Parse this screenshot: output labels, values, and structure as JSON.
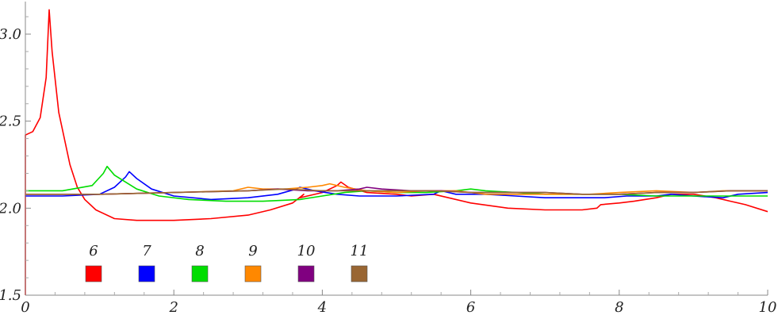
{
  "chart_data": {
    "type": "line",
    "title": "",
    "xlabel": "",
    "ylabel": "",
    "xlim": [
      0,
      10
    ],
    "ylim": [
      1.5,
      3.2
    ],
    "x_ticks": [
      0,
      2,
      4,
      6,
      8,
      10
    ],
    "x_tick_labels": [
      "0",
      "2",
      "4",
      "6",
      "8",
      "10"
    ],
    "y_ticks": [
      1.5,
      2.0,
      2.5,
      3.0
    ],
    "y_tick_labels": [
      "1.5",
      "2.0",
      "2.5",
      "3.0"
    ],
    "grid": false,
    "legend_placement": "bottom-left",
    "series": [
      {
        "name": "6",
        "color": "#ff0000",
        "points": [
          [
            0,
            1.5
          ],
          [
            0,
            2.42
          ],
          [
            0.1,
            2.44
          ],
          [
            0.2,
            2.52
          ],
          [
            0.28,
            2.75
          ],
          [
            0.32,
            3.14
          ],
          [
            0.36,
            2.9
          ],
          [
            0.45,
            2.55
          ],
          [
            0.6,
            2.25
          ],
          [
            0.7,
            2.12
          ],
          [
            0.8,
            2.05
          ],
          [
            0.95,
            1.99
          ],
          [
            1.2,
            1.94
          ],
          [
            1.5,
            1.93
          ],
          [
            2.0,
            1.93
          ],
          [
            2.5,
            1.94
          ],
          [
            3.0,
            1.96
          ],
          [
            3.3,
            1.99
          ],
          [
            3.6,
            2.03
          ],
          [
            3.75,
            2.08
          ],
          [
            3.7,
            2.06
          ],
          [
            4.0,
            2.09
          ],
          [
            4.2,
            2.13
          ],
          [
            4.25,
            2.15
          ],
          [
            4.35,
            2.12
          ],
          [
            4.6,
            2.09
          ],
          [
            5.0,
            2.08
          ],
          [
            5.2,
            2.07
          ],
          [
            5.5,
            2.08
          ],
          [
            5.7,
            2.06
          ],
          [
            6.0,
            2.03
          ],
          [
            6.5,
            2.0
          ],
          [
            7.0,
            1.99
          ],
          [
            7.5,
            1.99
          ],
          [
            7.7,
            2.0
          ],
          [
            7.75,
            2.02
          ],
          [
            8.0,
            2.03
          ],
          [
            8.2,
            2.04
          ],
          [
            8.5,
            2.06
          ],
          [
            8.7,
            2.08
          ],
          [
            9.0,
            2.08
          ],
          [
            9.3,
            2.06
          ],
          [
            9.5,
            2.04
          ],
          [
            9.7,
            2.02
          ],
          [
            10,
            1.98
          ]
        ]
      },
      {
        "name": "7",
        "color": "#0000ff",
        "points": [
          [
            0,
            2.07
          ],
          [
            0.5,
            2.07
          ],
          [
            1.0,
            2.08
          ],
          [
            1.2,
            2.12
          ],
          [
            1.35,
            2.18
          ],
          [
            1.4,
            2.21
          ],
          [
            1.5,
            2.17
          ],
          [
            1.7,
            2.11
          ],
          [
            2.0,
            2.07
          ],
          [
            2.5,
            2.05
          ],
          [
            3.0,
            2.06
          ],
          [
            3.4,
            2.08
          ],
          [
            3.65,
            2.11
          ],
          [
            3.7,
            2.12
          ],
          [
            3.9,
            2.1
          ],
          [
            4.2,
            2.08
          ],
          [
            4.5,
            2.07
          ],
          [
            5.0,
            2.07
          ],
          [
            5.5,
            2.08
          ],
          [
            5.6,
            2.1
          ],
          [
            5.8,
            2.08
          ],
          [
            6.2,
            2.08
          ],
          [
            6.6,
            2.07
          ],
          [
            7.0,
            2.06
          ],
          [
            7.4,
            2.06
          ],
          [
            7.8,
            2.06
          ],
          [
            8.1,
            2.07
          ],
          [
            8.5,
            2.07
          ],
          [
            8.7,
            2.08
          ],
          [
            9.0,
            2.07
          ],
          [
            9.4,
            2.06
          ],
          [
            9.6,
            2.08
          ],
          [
            10,
            2.09
          ]
        ]
      },
      {
        "name": "8",
        "color": "#00dd00",
        "points": [
          [
            0,
            2.1
          ],
          [
            0.5,
            2.1
          ],
          [
            0.9,
            2.13
          ],
          [
            1.05,
            2.2
          ],
          [
            1.1,
            2.24
          ],
          [
            1.2,
            2.19
          ],
          [
            1.5,
            2.11
          ],
          [
            1.8,
            2.07
          ],
          [
            2.2,
            2.05
          ],
          [
            2.7,
            2.04
          ],
          [
            3.2,
            2.04
          ],
          [
            3.7,
            2.05
          ],
          [
            4.0,
            2.07
          ],
          [
            4.3,
            2.09
          ],
          [
            4.6,
            2.1
          ],
          [
            5.0,
            2.09
          ],
          [
            5.4,
            2.09
          ],
          [
            5.8,
            2.1
          ],
          [
            6.0,
            2.11
          ],
          [
            6.2,
            2.1
          ],
          [
            6.6,
            2.09
          ],
          [
            7.0,
            2.08
          ],
          [
            7.5,
            2.08
          ],
          [
            8.0,
            2.08
          ],
          [
            8.5,
            2.07
          ],
          [
            9.0,
            2.07
          ],
          [
            9.5,
            2.07
          ],
          [
            10,
            2.07
          ]
        ]
      },
      {
        "name": "9",
        "color": "#ff8800",
        "points": [
          [
            0,
            2.08
          ],
          [
            1.0,
            2.08
          ],
          [
            2.0,
            2.09
          ],
          [
            2.8,
            2.1
          ],
          [
            3.0,
            2.12
          ],
          [
            3.2,
            2.11
          ],
          [
            3.5,
            2.11
          ],
          [
            3.8,
            2.12
          ],
          [
            4.0,
            2.13
          ],
          [
            4.1,
            2.14
          ],
          [
            4.3,
            2.12
          ],
          [
            4.6,
            2.1
          ],
          [
            5.0,
            2.09
          ],
          [
            5.4,
            2.1
          ],
          [
            5.8,
            2.1
          ],
          [
            6.2,
            2.08
          ],
          [
            6.8,
            2.08
          ],
          [
            7.2,
            2.08
          ],
          [
            7.6,
            2.08
          ],
          [
            8.0,
            2.09
          ],
          [
            8.5,
            2.1
          ],
          [
            9.0,
            2.09
          ],
          [
            9.4,
            2.1
          ],
          [
            10,
            2.1
          ]
        ]
      },
      {
        "name": "10",
        "color": "#800080",
        "points": [
          [
            0,
            2.08
          ],
          [
            1.0,
            2.08
          ],
          [
            2.0,
            2.09
          ],
          [
            3.0,
            2.1
          ],
          [
            3.4,
            2.11
          ],
          [
            3.8,
            2.1
          ],
          [
            4.2,
            2.1
          ],
          [
            4.5,
            2.11
          ],
          [
            4.6,
            2.12
          ],
          [
            4.8,
            2.11
          ],
          [
            5.2,
            2.1
          ],
          [
            5.6,
            2.1
          ],
          [
            6.0,
            2.09
          ],
          [
            6.5,
            2.09
          ],
          [
            7.0,
            2.09
          ],
          [
            7.5,
            2.08
          ],
          [
            8.0,
            2.08
          ],
          [
            8.5,
            2.09
          ],
          [
            9.0,
            2.09
          ],
          [
            9.5,
            2.1
          ],
          [
            10,
            2.1
          ]
        ]
      },
      {
        "name": "11",
        "color": "#996633",
        "points": [
          [
            0,
            2.08
          ],
          [
            1.0,
            2.08
          ],
          [
            2.0,
            2.09
          ],
          [
            3.0,
            2.1
          ],
          [
            3.5,
            2.11
          ],
          [
            4.0,
            2.1
          ],
          [
            4.5,
            2.1
          ],
          [
            5.0,
            2.1
          ],
          [
            5.5,
            2.1
          ],
          [
            6.0,
            2.09
          ],
          [
            6.5,
            2.09
          ],
          [
            7.0,
            2.09
          ],
          [
            7.5,
            2.08
          ],
          [
            8.0,
            2.08
          ],
          [
            8.5,
            2.09
          ],
          [
            9.0,
            2.09
          ],
          [
            9.5,
            2.1
          ],
          [
            10,
            2.1
          ]
        ]
      }
    ]
  }
}
